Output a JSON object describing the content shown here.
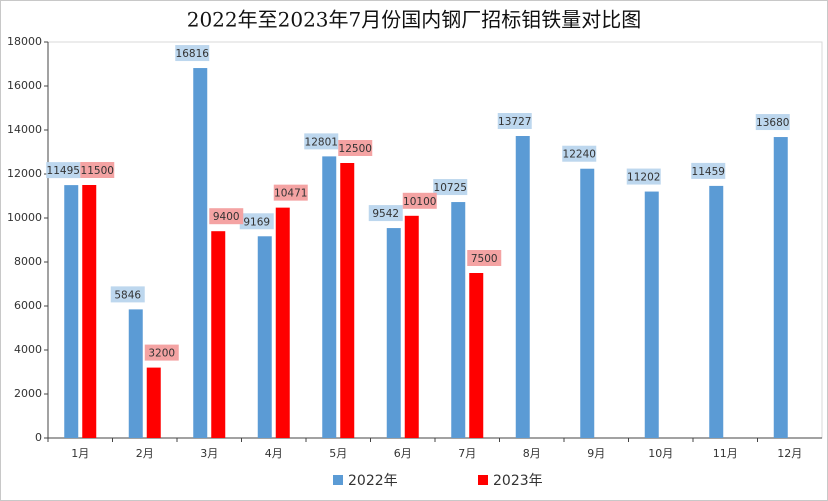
{
  "chart_data": {
    "type": "bar",
    "title": "2022年至2023年7月份国内钢厂招标钼铁量对比图",
    "categories": [
      "1月",
      "2月",
      "3月",
      "4月",
      "5月",
      "6月",
      "7月",
      "8月",
      "9月",
      "10月",
      "11月",
      "12月"
    ],
    "series": [
      {
        "name": "2022年",
        "color": "#5b9bd5",
        "label_bg": "#bdd7ee",
        "values": [
          11495,
          5846,
          16816,
          9169,
          12801,
          9542,
          10725,
          13727,
          12240,
          11202,
          11459,
          13680
        ]
      },
      {
        "name": "2023年",
        "color": "#ff0000",
        "label_bg": "#f4a3a3",
        "values": [
          11500,
          3200,
          9400,
          10471,
          12500,
          10100,
          7500,
          null,
          null,
          null,
          null,
          null
        ]
      }
    ],
    "ylim": [
      0,
      18000
    ],
    "yticks": [
      0,
      2000,
      4000,
      6000,
      8000,
      10000,
      12000,
      14000,
      16000,
      18000
    ],
    "legend": "bottom",
    "grid": false
  }
}
